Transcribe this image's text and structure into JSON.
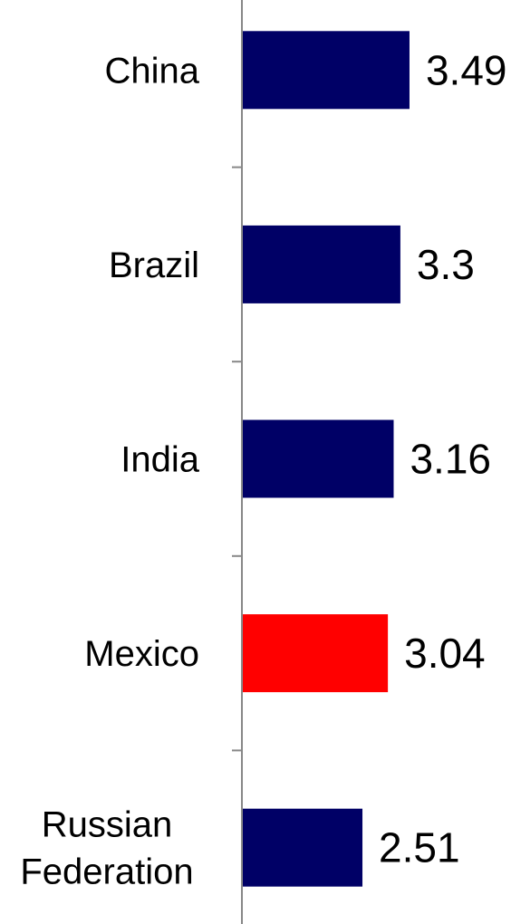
{
  "chart_data": {
    "type": "bar",
    "orientation": "horizontal",
    "categories": [
      [
        "China"
      ],
      [
        "Brazil"
      ],
      [
        "India"
      ],
      [
        "Mexico"
      ],
      [
        "Russian",
        "Federation"
      ]
    ],
    "values": [
      3.49,
      3.3,
      3.16,
      3.04,
      2.51
    ],
    "value_labels": [
      "3.49",
      "3.3",
      "3.16",
      "3.04",
      "2.51"
    ],
    "bar_colors": [
      "#000066",
      "#000066",
      "#000066",
      "#FF0000",
      "#000066"
    ],
    "xlim": [
      0,
      5.2
    ],
    "grid": false,
    "legend": "none",
    "title": "",
    "xlabel": "",
    "ylabel": ""
  }
}
